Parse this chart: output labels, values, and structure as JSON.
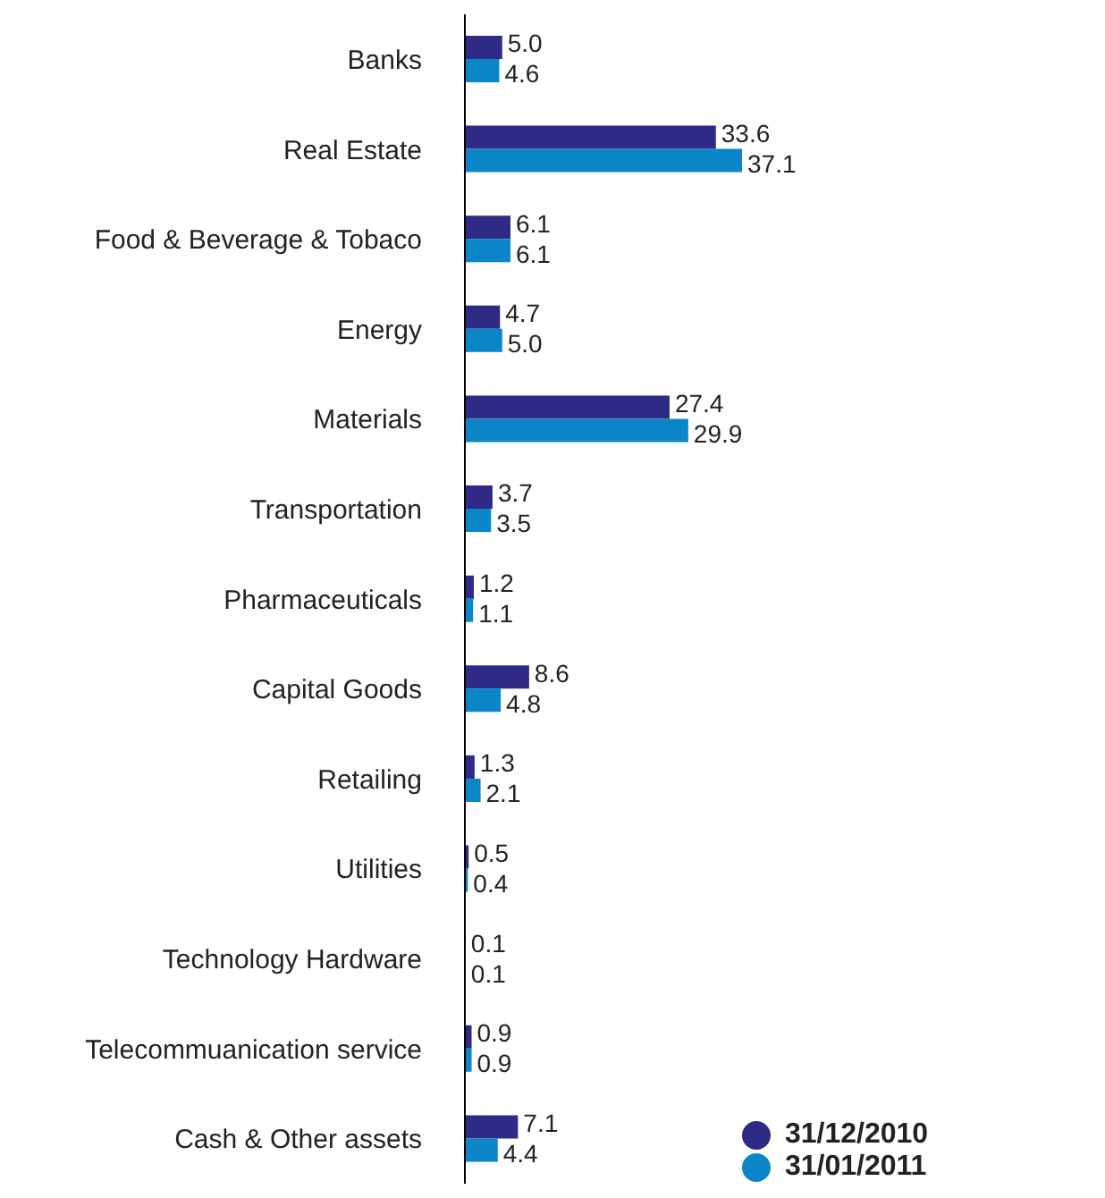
{
  "chart_data": {
    "type": "bar",
    "orientation": "horizontal",
    "legend": "bottom right",
    "categories": [
      "Banks",
      "Real Estate",
      "Food & Beverage & Tobaco",
      "Energy",
      "Materials",
      "Transportation",
      "Pharmaceuticals",
      "Capital Goods",
      "Retailing",
      "Utilities",
      "Technology Hardware",
      "Telecommuanication service",
      "Cash & Other assets"
    ],
    "series": [
      {
        "name": "31/12/2010",
        "color": "#2e2a86",
        "values": [
          5.0,
          33.6,
          6.1,
          4.7,
          27.4,
          3.7,
          1.2,
          8.6,
          1.3,
          0.5,
          0.1,
          0.9,
          7.1
        ],
        "value_labels": [
          "5.0",
          "33.6",
          "6.1",
          "4.7",
          "27.4",
          "3.7",
          "1.2",
          "8.6",
          "1.3",
          "0.5",
          "0.1",
          "0.9",
          "7.1"
        ]
      },
      {
        "name": "31/01/2011",
        "color": "#0a85c7",
        "values": [
          4.6,
          37.1,
          6.1,
          5.0,
          29.9,
          3.5,
          1.1,
          4.8,
          2.1,
          0.4,
          0.1,
          0.9,
          4.4
        ],
        "value_labels": [
          "4.6",
          "37.1",
          "6.1",
          "5.0",
          "29.9",
          "3.5",
          "1.1",
          "4.8",
          "2.1",
          "0.4",
          "0.1",
          "0.9",
          "4.4"
        ]
      }
    ]
  }
}
